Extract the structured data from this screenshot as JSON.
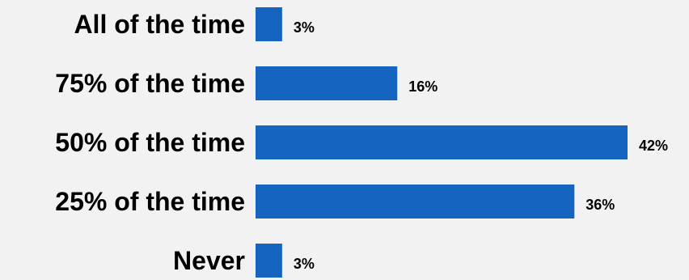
{
  "chart_data": {
    "type": "bar",
    "orientation": "horizontal",
    "categories": [
      "All of the time",
      "75% of the time",
      "50% of the time",
      "25% of the time",
      "Never"
    ],
    "values": [
      3,
      16,
      42,
      36,
      3
    ],
    "value_labels": [
      "3%",
      "16%",
      "42%",
      "36%",
      "3%"
    ],
    "xlim": [
      0,
      42
    ],
    "grid": false,
    "legend": "none",
    "bar_color": "#1565c0",
    "background_color": "#f2f2f2"
  }
}
